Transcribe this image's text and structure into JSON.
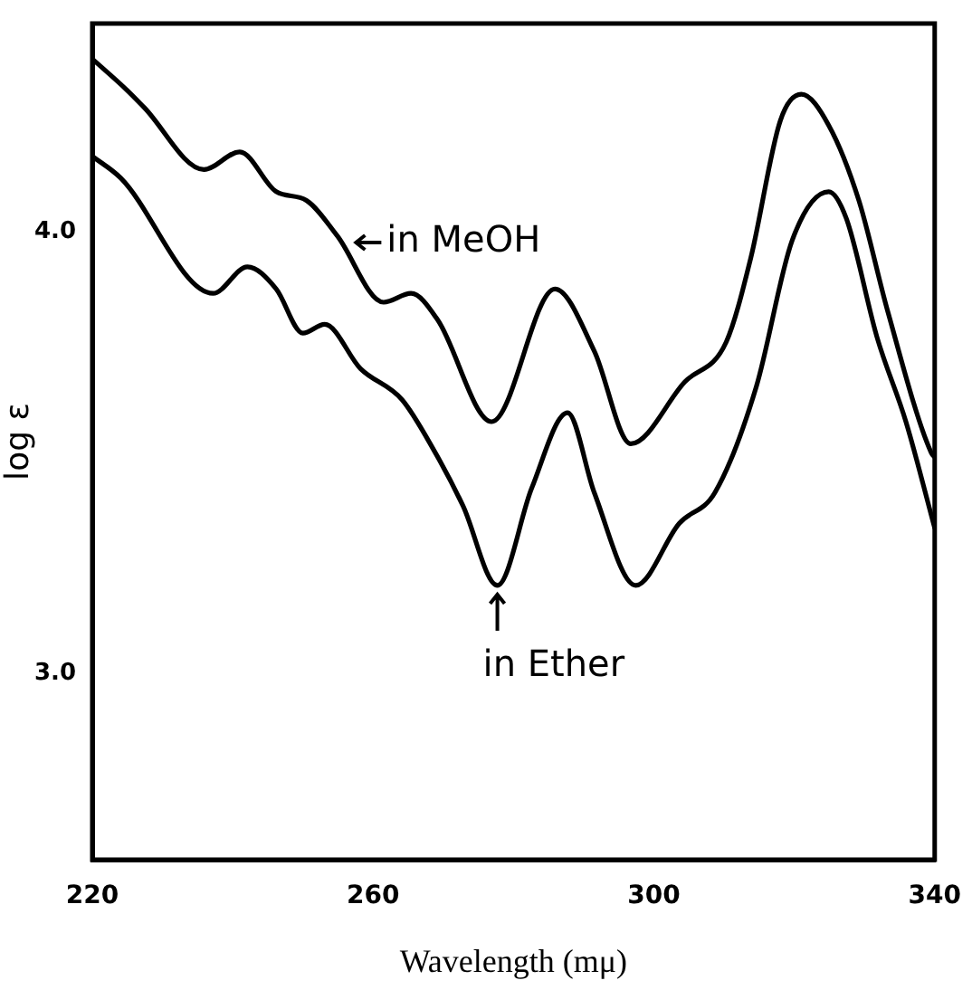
{
  "chart_data": {
    "type": "line",
    "xlabel": "Wavelength (mμ)",
    "ylabel": "log ε",
    "xlim": [
      220,
      340
    ],
    "xticks": [
      220,
      260,
      300,
      340
    ],
    "ylim": [
      2.58,
      4.47
    ],
    "yticks": [
      {
        "value": 3,
        "label": "3.0"
      },
      {
        "value": 4,
        "label": "4.0"
      }
    ],
    "grid": false,
    "legend": false,
    "marker": "none",
    "line_style": "solid",
    "series": [
      {
        "color": "#000000",
        "x": [
          220,
          224.9,
          227.4,
          235.9,
          241,
          246.2,
          250.5,
          254.9,
          261.5,
          265.4,
          269.2,
          276.9,
          285.9,
          291.5,
          296.7,
          304.4,
          310.3,
          313.8,
          318,
          321,
          324.9,
          329.2,
          333.3,
          339.5,
          340
        ],
        "values": [
          4.39,
          4.32,
          4.28,
          4.14,
          4.18,
          4.09,
          4.07,
          3.99,
          3.84,
          3.86,
          3.8,
          3.57,
          3.87,
          3.73,
          3.52,
          3.66,
          3.75,
          3.94,
          4.25,
          4.31,
          4.24,
          4.07,
          3.82,
          3.5,
          3.49
        ]
      },
      {
        "color": "#000000",
        "x": [
          220,
          224.1,
          237.2,
          242.1,
          246.2,
          250,
          253.1,
          258.2,
          264.1,
          268.5,
          272.8,
          277.7,
          282.6,
          287.7,
          291.5,
          297.4,
          303.6,
          308.7,
          314.6,
          319.7,
          324.9,
          327.4,
          331.8,
          335.9,
          340
        ],
        "values": [
          4.17,
          4.12,
          3.86,
          3.92,
          3.87,
          3.77,
          3.79,
          3.69,
          3.62,
          3.51,
          3.38,
          3.2,
          3.42,
          3.59,
          3.41,
          3.2,
          3.34,
          3.41,
          3.65,
          3.98,
          4.09,
          4.03,
          3.76,
          3.57,
          3.33
        ]
      }
    ],
    "annotations": [
      {
        "text": "in MeOH",
        "x": 255.5,
        "y": 3.975
      },
      {
        "text": "in Ether",
        "x": 277.7,
        "y": 3.2
      }
    ]
  }
}
